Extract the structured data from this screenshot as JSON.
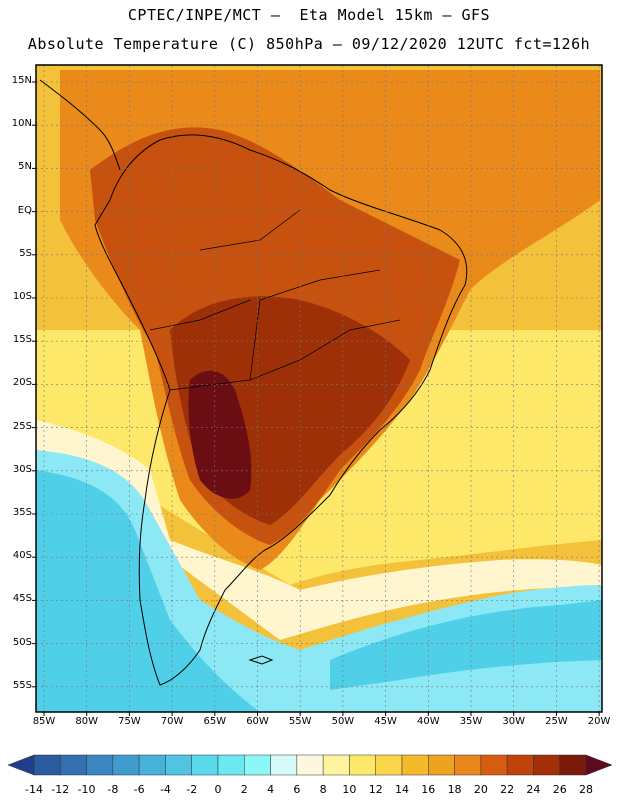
{
  "title": {
    "line1": "CPTEC/INPE/MCT –  Eta Model 15km – GFS",
    "line2": "Absolute Temperature (C) 850hPa – 09/12/2020 12UTC fct=126h"
  },
  "axes": {
    "lat_labels": [
      "15N",
      "10N",
      "5N",
      "EQ",
      "5S",
      "10S",
      "15S",
      "20S",
      "25S",
      "30S",
      "35S",
      "40S",
      "45S",
      "50S",
      "55S"
    ],
    "lon_labels": [
      "85W",
      "80W",
      "75W",
      "70W",
      "65W",
      "60W",
      "55W",
      "50W",
      "45W",
      "40W",
      "35W",
      "30W",
      "25W",
      "20W"
    ]
  },
  "colorbar": {
    "labels": [
      "-14",
      "-12",
      "-10",
      "-8",
      "-6",
      "-4",
      "-2",
      "0",
      "2",
      "4",
      "6",
      "8",
      "10",
      "12",
      "14",
      "16",
      "18",
      "20",
      "22",
      "24",
      "26",
      "28"
    ],
    "colors": [
      "#1f3f8c",
      "#2a5aa0",
      "#3370b0",
      "#3a86c2",
      "#3f9ccf",
      "#45b2da",
      "#4fc5e3",
      "#5ad8ec",
      "#6ce8f2",
      "#8cf7f7",
      "#d6fafa",
      "#fff8e0",
      "#fff3a0",
      "#fde86a",
      "#f9d54a",
      "#f3bb2c",
      "#eea31e",
      "#e9871a",
      "#d85c10",
      "#c2420b",
      "#a32e08",
      "#7a1a0a",
      "#5c0a1c"
    ]
  },
  "field_colors": {
    "ocean_cold": "#4fd0e8",
    "ocean_cool": "#8ce8f4",
    "ocean_pale": "#fff6d0",
    "ocean_yellow": "#fde86a",
    "ocean_amber": "#f3c23a",
    "warm_orange": "#eea31e",
    "hot_orange": "#e98a1a",
    "hot_red": "#c7520f",
    "very_hot": "#9e3008",
    "extreme": "#6a0e14"
  }
}
